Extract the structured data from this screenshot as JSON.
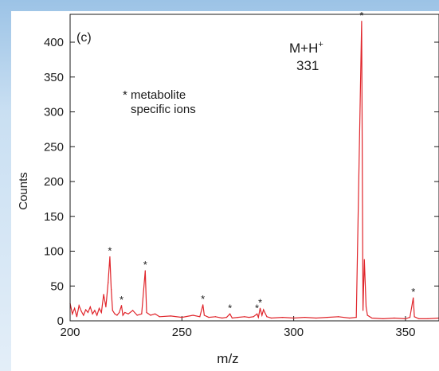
{
  "chart_data": {
    "type": "line",
    "panel_label": "(c)",
    "xlabel": "m/z",
    "ylabel": "Counts",
    "xlim": [
      200,
      365
    ],
    "ylim": [
      0,
      440
    ],
    "x_ticks": [
      200,
      250,
      300,
      350
    ],
    "y_ticks": [
      0,
      50,
      100,
      150,
      200,
      250,
      300,
      350,
      400
    ],
    "peak_label": {
      "main": "M+H",
      "superscript": "+",
      "mass": "331"
    },
    "legend_note": [
      "* metabolite",
      "specific ions"
    ],
    "marker_symbol": "*",
    "series": [
      {
        "color": "#e0252b",
        "x": [
          200,
          201,
          202,
          203,
          204,
          205,
          206,
          207,
          208,
          209,
          210,
          211,
          212,
          213,
          214,
          215,
          216,
          217,
          217.8,
          218.4,
          219,
          220,
          221,
          222,
          223,
          223.6,
          224.5,
          226,
          228,
          230,
          232,
          233.6,
          234.2,
          236,
          238,
          240,
          245,
          250,
          255,
          258,
          259.4,
          260,
          262,
          265,
          268,
          270,
          271.5,
          272.5,
          275,
          278,
          280,
          282,
          283.6,
          284.2,
          285,
          285.8,
          286.5,
          288,
          290,
          295,
          300,
          305,
          310,
          315,
          320,
          325,
          328,
          330.4,
          331,
          331.6,
          332.4,
          333,
          335,
          340,
          345,
          350,
          352,
          353.5,
          354,
          356,
          360,
          365
        ],
        "y": [
          25,
          10,
          18,
          6,
          22,
          14,
          8,
          16,
          12,
          20,
          10,
          15,
          8,
          18,
          12,
          38,
          20,
          55,
          92,
          45,
          15,
          10,
          8,
          12,
          22,
          8,
          12,
          10,
          15,
          8,
          10,
          72,
          12,
          8,
          10,
          6,
          7,
          5,
          8,
          6,
          23,
          8,
          5,
          6,
          4,
          5,
          10,
          4,
          5,
          6,
          5,
          6,
          10,
          5,
          18,
          8,
          16,
          6,
          4,
          5,
          4,
          5,
          4,
          5,
          6,
          4,
          5,
          430,
          15,
          88,
          20,
          8,
          4,
          3,
          4,
          3,
          5,
          33,
          6,
          3,
          3,
          4
        ]
      }
    ],
    "starred_peaks": [
      {
        "x": 217.8,
        "y": 92
      },
      {
        "x": 223,
        "y": 22
      },
      {
        "x": 233.6,
        "y": 72
      },
      {
        "x": 259.4,
        "y": 23
      },
      {
        "x": 271.5,
        "y": 10
      },
      {
        "x": 283.6,
        "y": 10
      },
      {
        "x": 285,
        "y": 18
      },
      {
        "x": 330.4,
        "y": 430
      },
      {
        "x": 353.5,
        "y": 33
      }
    ]
  }
}
